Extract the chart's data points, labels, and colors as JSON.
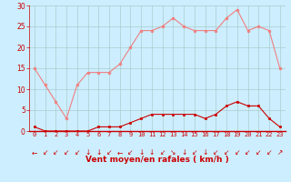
{
  "hours": [
    0,
    1,
    2,
    3,
    4,
    5,
    6,
    7,
    8,
    9,
    10,
    11,
    12,
    13,
    14,
    15,
    16,
    17,
    18,
    19,
    20,
    21,
    22,
    23
  ],
  "rafales": [
    15,
    11,
    7,
    3,
    11,
    14,
    14,
    14,
    16,
    20,
    24,
    24,
    25,
    27,
    25,
    24,
    24,
    24,
    27,
    29,
    24,
    25,
    24,
    15
  ],
  "moyen": [
    1,
    0,
    0,
    0,
    0,
    0,
    1,
    1,
    1,
    2,
    3,
    4,
    4,
    4,
    4,
    4,
    3,
    4,
    6,
    7,
    6,
    6,
    3,
    1
  ],
  "wind_dirs": [
    "←",
    "↙",
    "↙",
    "↙",
    "↙",
    "↓",
    "↓",
    "↙",
    "←",
    "↙",
    "↓",
    "↓",
    "↙",
    "↘",
    "↓",
    "↙",
    "↓",
    "↙",
    "↙",
    "↙",
    "↙",
    "↙",
    "↙",
    "↗"
  ],
  "line_color_rafales": "#f08080",
  "line_color_moyen": "#cc0000",
  "bg_color": "#cceeff",
  "grid_color": "#aacccc",
  "xlabel": "Vent moyen/en rafales ( km/h )",
  "xlabel_color": "#cc0000",
  "tick_color": "#cc0000",
  "ylim": [
    0,
    30
  ],
  "yticks": [
    0,
    5,
    10,
    15,
    20,
    25,
    30
  ],
  "spine_color": "#cc0000",
  "axis_line_color": "#cc0000"
}
